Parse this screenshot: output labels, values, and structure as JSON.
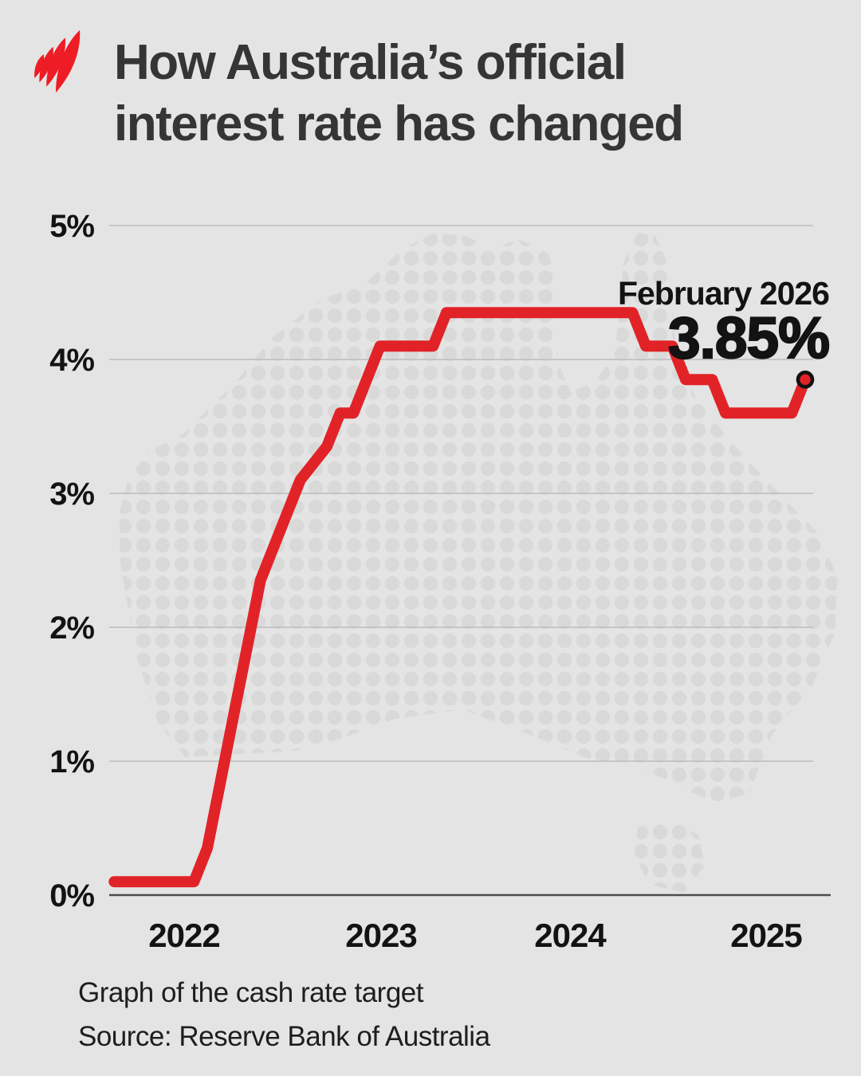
{
  "header": {
    "title_line1": "How Australia’s official",
    "title_line2": "interest rate has changed",
    "logo_name": "sbs-mercator-logo"
  },
  "annotation": {
    "label": "February 2026",
    "value": "3.85%"
  },
  "axis_y": {
    "ticks": [
      "5%",
      "4%",
      "3%",
      "2%",
      "1%",
      "0%"
    ]
  },
  "axis_x": {
    "ticks": [
      "2022",
      "2023",
      "2024",
      "2025"
    ]
  },
  "footer": {
    "caption": "Graph of the cash rate target",
    "source": "Source: Reserve Bank of Australia"
  },
  "colors": {
    "background": "#e4e4e4",
    "map_dots": "#d9d9d9",
    "line_red": "#e12328",
    "logo_red": "#ee1c25",
    "gridline": "#bcbcbc",
    "axis_line": "#4d4d4d",
    "text_dark": "#131313",
    "title_text": "#353535"
  },
  "chart_data": {
    "type": "line",
    "title": "How Australia's official interest rate has changed",
    "series_name": "Cash rate target (%)",
    "ylabel": "Cash rate target",
    "unit": "percent",
    "ylim": [
      0,
      5
    ],
    "y_ticks_percent": [
      5,
      4,
      3,
      2,
      1,
      0
    ],
    "x_ticks": [
      "2022",
      "2023",
      "2024",
      "2025"
    ],
    "grid": true,
    "points": [
      [
        "2021-10",
        0.1
      ],
      [
        "2022-04",
        0.1
      ],
      [
        "2022-05",
        0.35
      ],
      [
        "2022-06",
        0.85
      ],
      [
        "2022-07",
        1.35
      ],
      [
        "2022-08",
        1.85
      ],
      [
        "2022-09",
        2.35
      ],
      [
        "2022-10",
        2.6
      ],
      [
        "2022-11",
        2.85
      ],
      [
        "2022-12",
        3.1
      ],
      [
        "2023-02",
        3.35
      ],
      [
        "2023-03",
        3.6
      ],
      [
        "2023-04",
        3.6
      ],
      [
        "2023-05",
        3.85
      ],
      [
        "2023-06",
        4.1
      ],
      [
        "2023-10",
        4.1
      ],
      [
        "2023-11",
        4.35
      ],
      [
        "2025-01",
        4.35
      ],
      [
        "2025-02",
        4.1
      ],
      [
        "2025-04",
        4.1
      ],
      [
        "2025-05",
        3.85
      ],
      [
        "2025-07",
        3.85
      ],
      [
        "2025-08",
        3.6
      ],
      [
        "2026-01",
        3.6
      ],
      [
        "2026-02",
        3.85
      ]
    ],
    "end_label": {
      "date": "February 2026",
      "value_percent": 3.85
    },
    "caption": "Graph of the cash rate target",
    "source": "Source: Reserve Bank of Australia",
    "legend_position": "none"
  }
}
